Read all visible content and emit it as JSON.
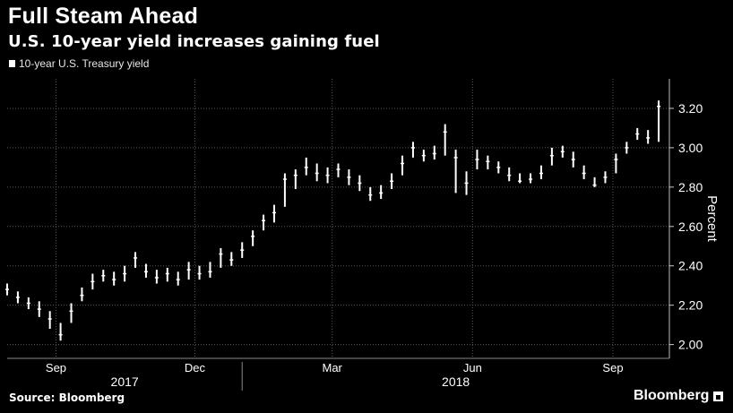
{
  "header": {
    "title": "Full Steam Ahead",
    "subtitle": "U.S. 10-year yield increases gaining fuel"
  },
  "footer": {
    "source": "Source: Bloomberg",
    "brand": "Bloomberg"
  },
  "colors": {
    "background": "#000000",
    "series": "#ffffff",
    "grid": "#555555",
    "text": "#ffffff"
  },
  "chart_data": {
    "type": "line",
    "series_style": "candlestick (high-low bars)",
    "title": "Full Steam Ahead",
    "subtitle": "U.S. 10-year yield increases gaining fuel",
    "ylabel": "Percent",
    "ylim": [
      1.93,
      3.35
    ],
    "y_ticks": [
      2.0,
      2.2,
      2.4,
      2.6,
      2.8,
      3.0,
      3.2
    ],
    "y_tick_labels": [
      "2.00",
      "2.20",
      "2.40",
      "2.60",
      "2.80",
      "3.00",
      "3.20"
    ],
    "y_axis_position": "right",
    "grid": true,
    "legend_position": "top-left",
    "x_range": [
      "2017-07-31",
      "2018-10-08"
    ],
    "x_ticks": [
      {
        "date": "2017-09-01",
        "label": "Sep"
      },
      {
        "date": "2017-12-01",
        "label": "Dec"
      },
      {
        "date": "2018-03-01",
        "label": "Mar"
      },
      {
        "date": "2018-06-01",
        "label": "Jun"
      },
      {
        "date": "2018-09-01",
        "label": "Sep"
      }
    ],
    "year_labels": [
      {
        "label": "2017",
        "from": "2017-07-31",
        "to": "2018-01-01"
      },
      {
        "label": "2018",
        "from": "2018-01-01",
        "to": "2018-10-08"
      }
    ],
    "series": [
      {
        "name": "10-year U.S. Treasury yield",
        "x": [
          "2017-07-31",
          "2017-08-07",
          "2017-08-14",
          "2017-08-21",
          "2017-08-28",
          "2017-09-04",
          "2017-09-11",
          "2017-09-18",
          "2017-09-25",
          "2017-10-02",
          "2017-10-09",
          "2017-10-16",
          "2017-10-23",
          "2017-10-30",
          "2017-11-06",
          "2017-11-13",
          "2017-11-20",
          "2017-11-27",
          "2017-12-04",
          "2017-12-11",
          "2017-12-18",
          "2017-12-25",
          "2018-01-01",
          "2018-01-08",
          "2018-01-15",
          "2018-01-22",
          "2018-01-29",
          "2018-02-05",
          "2018-02-12",
          "2018-02-19",
          "2018-02-26",
          "2018-03-05",
          "2018-03-12",
          "2018-03-19",
          "2018-03-26",
          "2018-04-02",
          "2018-04-09",
          "2018-04-16",
          "2018-04-23",
          "2018-04-30",
          "2018-05-07",
          "2018-05-14",
          "2018-05-21",
          "2018-05-28",
          "2018-06-04",
          "2018-06-11",
          "2018-06-18",
          "2018-06-25",
          "2018-07-02",
          "2018-07-09",
          "2018-07-16",
          "2018-07-23",
          "2018-07-30",
          "2018-08-06",
          "2018-08-13",
          "2018-08-20",
          "2018-08-27",
          "2018-09-03",
          "2018-09-10",
          "2018-09-17",
          "2018-09-24",
          "2018-10-01"
        ],
        "values": [
          2.28,
          2.24,
          2.21,
          2.18,
          2.13,
          2.05,
          2.17,
          2.25,
          2.32,
          2.35,
          2.33,
          2.36,
          2.44,
          2.37,
          2.34,
          2.36,
          2.33,
          2.38,
          2.36,
          2.37,
          2.46,
          2.43,
          2.48,
          2.55,
          2.63,
          2.67,
          2.84,
          2.86,
          2.9,
          2.87,
          2.86,
          2.89,
          2.85,
          2.82,
          2.76,
          2.77,
          2.83,
          2.92,
          3.0,
          2.96,
          2.97,
          3.08,
          2.95,
          2.82,
          2.94,
          2.93,
          2.9,
          2.86,
          2.83,
          2.84,
          2.87,
          2.96,
          2.98,
          2.94,
          2.87,
          2.81,
          2.85,
          2.94,
          3.0,
          3.07,
          3.05,
          3.21
        ],
        "low": [
          2.25,
          2.21,
          2.18,
          2.14,
          2.08,
          2.02,
          2.11,
          2.22,
          2.28,
          2.32,
          2.3,
          2.32,
          2.39,
          2.34,
          2.31,
          2.32,
          2.3,
          2.33,
          2.33,
          2.34,
          2.39,
          2.4,
          2.44,
          2.5,
          2.58,
          2.62,
          2.7,
          2.79,
          2.86,
          2.83,
          2.82,
          2.85,
          2.81,
          2.78,
          2.73,
          2.74,
          2.79,
          2.86,
          2.95,
          2.93,
          2.94,
          2.96,
          2.77,
          2.76,
          2.89,
          2.89,
          2.87,
          2.83,
          2.82,
          2.82,
          2.84,
          2.91,
          2.95,
          2.9,
          2.84,
          2.8,
          2.82,
          2.87,
          2.97,
          3.04,
          3.02,
          3.03
        ],
        "high": [
          2.31,
          2.27,
          2.24,
          2.22,
          2.17,
          2.11,
          2.21,
          2.29,
          2.36,
          2.38,
          2.37,
          2.4,
          2.47,
          2.41,
          2.38,
          2.39,
          2.37,
          2.42,
          2.4,
          2.42,
          2.49,
          2.47,
          2.52,
          2.58,
          2.66,
          2.71,
          2.87,
          2.89,
          2.95,
          2.92,
          2.9,
          2.92,
          2.89,
          2.86,
          2.8,
          2.81,
          2.87,
          2.96,
          3.03,
          2.99,
          3.01,
          3.12,
          2.99,
          2.88,
          2.99,
          2.96,
          2.93,
          2.9,
          2.87,
          2.87,
          2.91,
          3.0,
          3.01,
          2.98,
          2.91,
          2.85,
          2.88,
          2.97,
          3.03,
          3.1,
          3.09,
          3.24
        ]
      }
    ]
  }
}
